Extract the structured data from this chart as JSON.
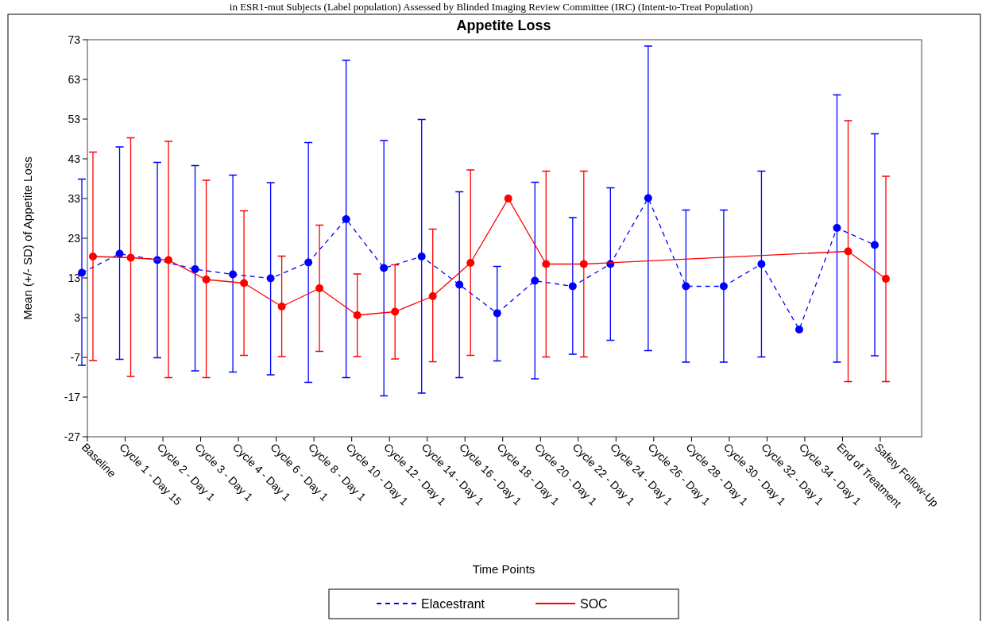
{
  "chart_data": {
    "type": "line",
    "title": "Appetite Loss",
    "subtitle": "in ESR1-mut Subjects (Label population) Assessed by Blinded Imaging Review Committee (IRC) (Intent-to-Treat Population)",
    "xlabel": "Time Points",
    "ylabel": "Mean (+/- SD) of Appetite Loss",
    "categories": [
      "Baseline",
      "Cycle 1 - Day 15",
      "Cycle 2 - Day 1",
      "Cycle 3 - Day 1",
      "Cycle 4 - Day 1",
      "Cycle 6 - Day 1",
      "Cycle 8 - Day 1",
      "Cycle 10 - Day 1",
      "Cycle 12 - Day 1",
      "Cycle 14 - Day 1",
      "Cycle 16 - Day 1",
      "Cycle 18 - Day 1",
      "Cycle 20 - Day 1",
      "Cycle 22 - Day 1",
      "Cycle 24 - Day 1",
      "Cycle 26 - Day 1",
      "Cycle 28 - Day 1",
      "Cycle 30 - Day 1",
      "Cycle 32 - Day 1",
      "Cycle 34 - Day 1",
      "End of Treatment",
      "Safety Follow-Up"
    ],
    "series": [
      {
        "name": "Elacestrant",
        "color": "#0000ff",
        "line_style": "dashed",
        "values": [
          14.3,
          19.1,
          17.5,
          15.2,
          13.9,
          12.9,
          16.9,
          27.8,
          15.5,
          18.4,
          11.3,
          4.1,
          12.3,
          10.9,
          16.5,
          33.1,
          10.9,
          10.9,
          16.5,
          0,
          25.6,
          21.3
        ],
        "errors": [
          [
            -9,
            37.9
          ],
          [
            -7.5,
            46
          ],
          [
            -7.1,
            42.1
          ],
          [
            -10.4,
            41.3
          ],
          [
            -10.7,
            38.9
          ],
          [
            -11.4,
            37
          ],
          [
            -13.3,
            47.1
          ],
          [
            -12.1,
            67.8
          ],
          [
            -16.7,
            47.6
          ],
          [
            -16,
            52.9
          ],
          [
            -12.1,
            34.7
          ],
          [
            -7.9,
            15.9
          ],
          [
            -12.4,
            37.1
          ],
          [
            -6.2,
            28.2
          ],
          [
            -2.7,
            35.7
          ],
          [
            -5.3,
            71.4
          ],
          [
            -8.2,
            30.1
          ],
          [
            -8.2,
            30.1
          ],
          [
            -6.9,
            39.9
          ],
          null,
          [
            -8.2,
            59.1
          ],
          [
            -6.6,
            49.3
          ]
        ]
      },
      {
        "name": "SOC",
        "color": "#ff0000",
        "line_style": "solid",
        "values": [
          18.4,
          18.1,
          17.5,
          12.6,
          11.7,
          5.8,
          10.4,
          3.6,
          4.5,
          8.4,
          16.8,
          33,
          16.5,
          16.5,
          null,
          null,
          null,
          null,
          null,
          null,
          19.7,
          12.8
        ],
        "errors": [
          [
            -7.8,
            44.7
          ],
          [
            -11.8,
            48.3
          ],
          [
            -12.1,
            47.4
          ],
          [
            -12.1,
            37.6
          ],
          [
            -6.5,
            29.9
          ],
          [
            -6.8,
            18.5
          ],
          [
            -5.5,
            26.3
          ],
          [
            -6.8,
            14
          ],
          [
            -7.4,
            16.3
          ],
          [
            -8.1,
            25.3
          ],
          [
            -6.5,
            40.2
          ],
          null,
          [
            -6.9,
            39.9
          ],
          [
            -6.9,
            39.9
          ],
          null,
          null,
          null,
          null,
          null,
          null,
          [
            -13.1,
            52.6
          ],
          [
            -13.1,
            38.6
          ]
        ]
      }
    ],
    "ylim": [
      -27,
      73
    ],
    "yticks": [
      -27,
      -17,
      -7,
      3,
      13,
      23,
      33,
      43,
      53,
      63,
      73
    ],
    "marker": "circle",
    "grid": false,
    "legend": "bottom"
  }
}
